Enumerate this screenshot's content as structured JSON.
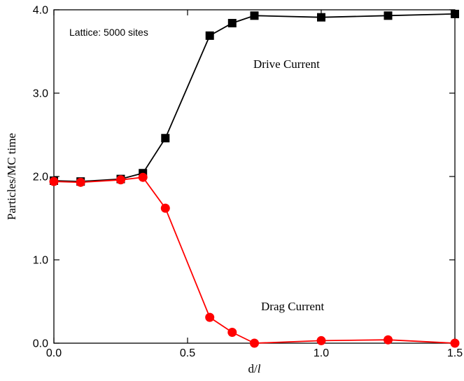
{
  "chart_data": {
    "type": "line",
    "xlabel_main": "d/",
    "xlabel_italic": "l",
    "ylabel": "Particles/MC time",
    "xlim": [
      0,
      1.5
    ],
    "ylim": [
      0,
      4
    ],
    "x_ticks": [
      0,
      0.5,
      1,
      1.5
    ],
    "x_tick_labels": [
      "0.0",
      "0.5",
      "1.0",
      "1.5"
    ],
    "y_ticks": [
      0,
      1,
      2,
      3,
      4
    ],
    "y_tick_labels": [
      "0.0",
      "1.0",
      "2.0",
      "3.0",
      "4.0"
    ],
    "annotations": {
      "lattice": "Lattice: 5000 sites",
      "drive": "Drive Current",
      "drag": "Drag Current"
    },
    "series": [
      {
        "key": "drive",
        "color": "#000000",
        "marker": "square",
        "points": [
          [
            0.0,
            1.95
          ],
          [
            0.1,
            1.94
          ],
          [
            0.25,
            1.97
          ],
          [
            0.333,
            2.04
          ],
          [
            0.417,
            2.46
          ],
          [
            0.583,
            3.69
          ],
          [
            0.667,
            3.84
          ],
          [
            0.75,
            3.93
          ],
          [
            1.0,
            3.91
          ],
          [
            1.25,
            3.93
          ],
          [
            1.5,
            3.95
          ]
        ]
      },
      {
        "key": "drag",
        "color": "#ff0000",
        "marker": "circle",
        "points": [
          [
            0.0,
            1.94
          ],
          [
            0.1,
            1.93
          ],
          [
            0.25,
            1.96
          ],
          [
            0.333,
            1.99
          ],
          [
            0.417,
            1.62
          ],
          [
            0.583,
            0.31
          ],
          [
            0.667,
            0.13
          ],
          [
            0.75,
            0.0
          ],
          [
            1.0,
            0.03
          ],
          [
            1.25,
            0.04
          ],
          [
            1.5,
            0.0
          ]
        ]
      }
    ]
  }
}
